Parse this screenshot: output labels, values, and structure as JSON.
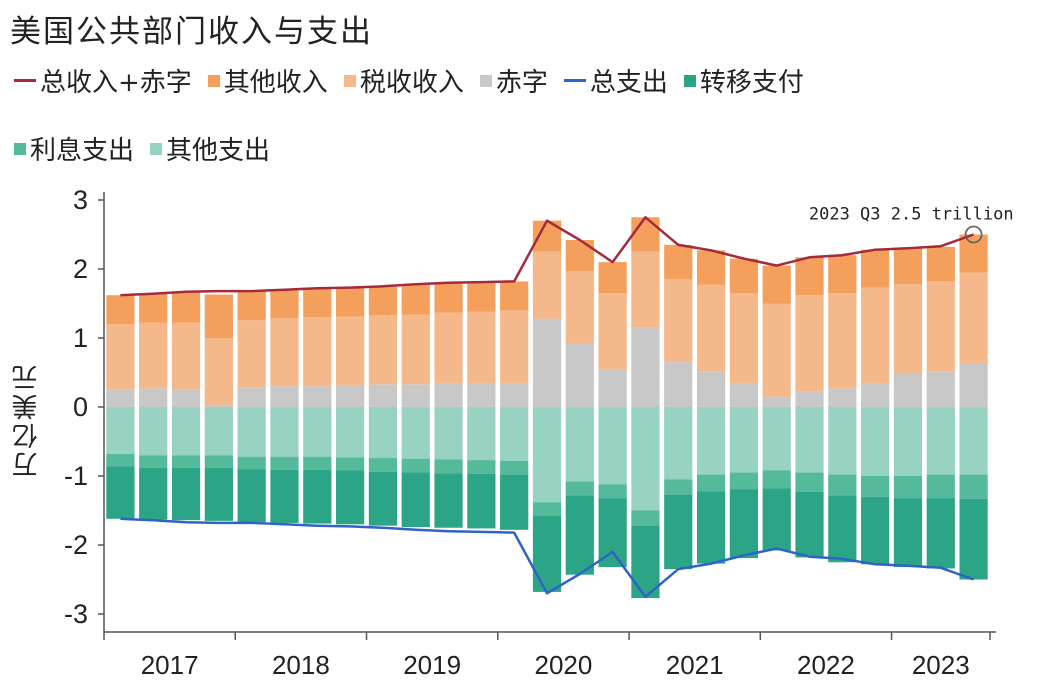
{
  "title": "美国公共部门收入与支出",
  "ylabel": "万亿美元",
  "legend": {
    "row1": [
      {
        "key": "total_rev_deficit",
        "label": "总收入+赤字",
        "type": "line",
        "color": "#A52A3A",
        "name": "legend-total-revenue-deficit"
      },
      {
        "key": "other_rev",
        "label": "其他收入",
        "type": "square",
        "color": "#F4A05C",
        "name": "legend-other-revenue"
      },
      {
        "key": "tax_rev",
        "label": "税收收入",
        "type": "square",
        "color": "#F5B88A",
        "name": "legend-tax-revenue"
      },
      {
        "key": "deficit",
        "label": "赤字",
        "type": "square",
        "color": "#C8C8C8",
        "name": "legend-deficit"
      },
      {
        "key": "total_exp",
        "label": "总支出",
        "type": "line",
        "color": "#2F63C6",
        "name": "legend-total-expenditure"
      },
      {
        "key": "transfer",
        "label": "转移支付",
        "type": "square",
        "color": "#2BA585",
        "name": "legend-transfer-payments"
      }
    ],
    "row2": [
      {
        "key": "interest",
        "label": "利息支出",
        "type": "square",
        "color": "#55B99C",
        "name": "legend-interest-expenditure"
      },
      {
        "key": "other_exp",
        "label": "其他支出",
        "type": "square",
        "color": "#97D2C2",
        "name": "legend-other-expenditure"
      }
    ]
  },
  "annotation": "2023 Q3  2.5 trillion",
  "chart_data": {
    "type": "bar",
    "title": "美国公共部门收入与支出",
    "ylabel": "万亿美元",
    "xlabel": "",
    "ylim": [
      -3,
      3
    ],
    "yticks": [
      -3,
      -2,
      -1,
      0,
      1,
      2,
      3
    ],
    "year_labels": [
      "2017",
      "2018",
      "2019",
      "2020",
      "2021",
      "2022",
      "2023"
    ],
    "quarters_per_year": 4,
    "quarters": [
      "2017Q1",
      "2017Q2",
      "2017Q3",
      "2017Q4",
      "2018Q1",
      "2018Q2",
      "2018Q3",
      "2018Q4",
      "2019Q1",
      "2019Q2",
      "2019Q3",
      "2019Q4",
      "2020Q1",
      "2020Q2",
      "2020Q3",
      "2020Q4",
      "2021Q1",
      "2021Q2",
      "2021Q3",
      "2021Q4",
      "2022Q1",
      "2022Q2",
      "2022Q3",
      "2022Q4",
      "2023Q1",
      "2023Q2",
      "2023Q3"
    ],
    "series": [
      {
        "key": "deficit",
        "name": "赤字",
        "color": "#C8C8C8",
        "side": "positive",
        "values": [
          0.25,
          0.27,
          0.25,
          0.03,
          0.28,
          0.3,
          0.3,
          0.32,
          0.33,
          0.33,
          0.35,
          0.35,
          0.35,
          1.28,
          0.92,
          0.55,
          1.15,
          0.65,
          0.52,
          0.35,
          0.15,
          0.22,
          0.27,
          0.35,
          0.48,
          0.52,
          0.63
        ]
      },
      {
        "key": "tax_rev",
        "name": "税收收入",
        "color": "#F5B88A",
        "side": "positive",
        "values": [
          0.95,
          0.95,
          0.97,
          0.97,
          0.98,
          0.99,
          1.0,
          0.99,
          1.0,
          1.01,
          1.02,
          1.03,
          1.05,
          0.97,
          1.05,
          1.1,
          1.1,
          1.2,
          1.25,
          1.3,
          1.35,
          1.4,
          1.38,
          1.38,
          1.3,
          1.3,
          1.32
        ]
      },
      {
        "key": "other_rev",
        "name": "其他收入",
        "color": "#F4A05C",
        "side": "positive",
        "values": [
          0.42,
          0.42,
          0.45,
          0.63,
          0.42,
          0.42,
          0.42,
          0.42,
          0.42,
          0.43,
          0.43,
          0.43,
          0.42,
          0.45,
          0.45,
          0.45,
          0.5,
          0.5,
          0.5,
          0.5,
          0.55,
          0.55,
          0.55,
          0.55,
          0.52,
          0.5,
          0.55
        ]
      },
      {
        "key": "other_exp",
        "name": "其他支出",
        "color": "#97D2C2",
        "side": "negative",
        "values": [
          0.68,
          0.7,
          0.7,
          0.7,
          0.72,
          0.72,
          0.72,
          0.73,
          0.74,
          0.75,
          0.76,
          0.77,
          0.78,
          1.38,
          1.08,
          1.12,
          1.5,
          1.05,
          0.98,
          0.95,
          0.92,
          0.95,
          0.98,
          1.0,
          1.0,
          0.98,
          0.98
        ]
      },
      {
        "key": "interest",
        "name": "利息支出",
        "color": "#55B99C",
        "side": "negative",
        "values": [
          0.18,
          0.18,
          0.18,
          0.18,
          0.18,
          0.19,
          0.19,
          0.19,
          0.2,
          0.2,
          0.2,
          0.2,
          0.2,
          0.2,
          0.2,
          0.2,
          0.22,
          0.22,
          0.24,
          0.24,
          0.26,
          0.28,
          0.3,
          0.3,
          0.32,
          0.34,
          0.35
        ]
      },
      {
        "key": "transfer",
        "name": "转移支付",
        "color": "#2BA585",
        "side": "negative",
        "values": [
          0.76,
          0.75,
          0.76,
          0.77,
          0.77,
          0.77,
          0.78,
          0.78,
          0.78,
          0.79,
          0.79,
          0.79,
          0.8,
          1.1,
          1.15,
          1.0,
          1.05,
          1.08,
          1.05,
          1.0,
          0.9,
          0.95,
          0.97,
          0.98,
          1.0,
          1.02,
          1.17
        ]
      },
      {
        "key": "total_rev_deficit",
        "name": "总收入+赤字",
        "color": "#A52A3A",
        "side": "line",
        "values": [
          1.62,
          1.64,
          1.67,
          1.68,
          1.68,
          1.7,
          1.72,
          1.73,
          1.75,
          1.78,
          1.8,
          1.81,
          1.82,
          2.7,
          2.42,
          2.1,
          2.75,
          2.35,
          2.27,
          2.15,
          2.05,
          2.17,
          2.2,
          2.28,
          2.3,
          2.33,
          2.5
        ]
      },
      {
        "key": "total_exp",
        "name": "总支出",
        "color": "#2F63C6",
        "side": "line",
        "values": [
          -1.62,
          -1.64,
          -1.67,
          -1.68,
          -1.68,
          -1.7,
          -1.72,
          -1.73,
          -1.75,
          -1.78,
          -1.8,
          -1.81,
          -1.82,
          -2.7,
          -2.42,
          -2.1,
          -2.75,
          -2.35,
          -2.27,
          -2.15,
          -2.05,
          -2.17,
          -2.2,
          -2.28,
          -2.3,
          -2.33,
          -2.5
        ]
      }
    ],
    "annotation": {
      "quarter": "2023Q3",
      "value": 2.5,
      "text": "2023 Q3  2.5 trillion"
    },
    "grid": false,
    "legend_position": "top"
  }
}
